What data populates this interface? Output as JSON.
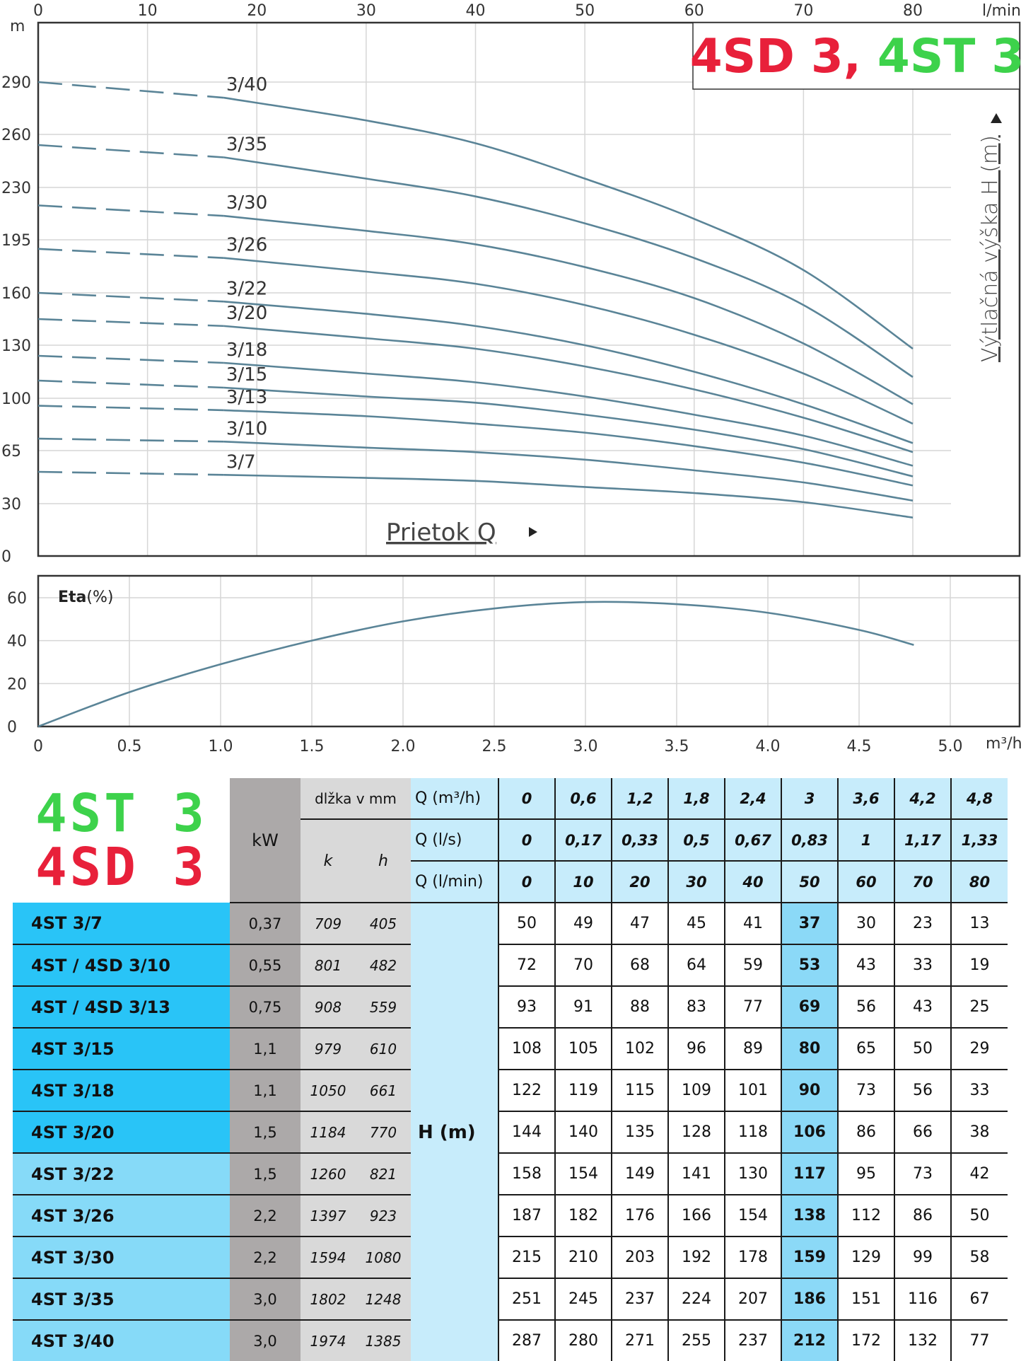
{
  "brand": {
    "title_red": "4SD 3,",
    "title_green": "4ST 3",
    "logo_green": "4ST 3",
    "logo_red": "4SD 3",
    "red_color": "#e8203a",
    "green_color": "#3dd24b"
  },
  "chart_data": [
    {
      "type": "line",
      "title": "",
      "ylabel": "Výtlačná výška H (m)",
      "xlabel": "Prietok Q",
      "y_unit": "m",
      "x_unit": "l/min",
      "xlim": [
        0,
        90
      ],
      "ylim": [
        0,
        320
      ],
      "x_ticks": [
        0,
        10,
        20,
        30,
        40,
        50,
        60,
        70,
        80
      ],
      "y_ticks": [
        0,
        30,
        65,
        100,
        130,
        160,
        195,
        230,
        260,
        290
      ],
      "grid": true,
      "line_color": "#5a8497",
      "extrapolated_range_l_min": [
        0,
        17
      ],
      "series": [
        {
          "name": "3/40",
          "x": [
            0,
            17,
            30,
            40,
            50,
            60,
            70,
            80
          ],
          "y": [
            290,
            281,
            268,
            255,
            235,
            209,
            175,
            128
          ]
        },
        {
          "name": "3/35",
          "x": [
            0,
            17,
            30,
            40,
            50,
            60,
            70,
            80
          ],
          "y": [
            254,
            247,
            235,
            224,
            206,
            183,
            153,
            112
          ]
        },
        {
          "name": "3/30",
          "x": [
            0,
            17,
            30,
            40,
            50,
            60,
            70,
            80
          ],
          "y": [
            218,
            211,
            201,
            192,
            177,
            157,
            131,
            96
          ]
        },
        {
          "name": "3/26",
          "x": [
            0,
            17,
            30,
            40,
            50,
            60,
            70,
            80
          ],
          "y": [
            189,
            183,
            174,
            166,
            153,
            136,
            114,
            83
          ]
        },
        {
          "name": "3/22",
          "x": [
            0,
            17,
            30,
            40,
            50,
            60,
            70,
            80
          ],
          "y": [
            160,
            155,
            148,
            141,
            130,
            115,
            96,
            70
          ]
        },
        {
          "name": "3/20",
          "x": [
            0,
            17,
            30,
            40,
            50,
            60,
            70,
            80
          ],
          "y": [
            145,
            141,
            134,
            128,
            118,
            105,
            87,
            64
          ]
        },
        {
          "name": "3/18",
          "x": [
            0,
            17,
            30,
            40,
            50,
            60,
            70,
            80
          ],
          "y": [
            124,
            120,
            114,
            109,
            101,
            89,
            75,
            55
          ]
        },
        {
          "name": "3/15",
          "x": [
            0,
            17,
            30,
            40,
            50,
            60,
            70,
            80
          ],
          "y": [
            110,
            106,
            101,
            97,
            89,
            79,
            66,
            48
          ]
        },
        {
          "name": "3/13",
          "x": [
            0,
            17,
            30,
            40,
            50,
            60,
            70,
            80
          ],
          "y": [
            95,
            92,
            88,
            83,
            77,
            68,
            57,
            42
          ]
        },
        {
          "name": "3/10",
          "x": [
            0,
            17,
            30,
            40,
            50,
            60,
            70,
            80
          ],
          "y": [
            73,
            71,
            67,
            64,
            59,
            52,
            44,
            32
          ]
        },
        {
          "name": "3/7",
          "x": [
            0,
            17,
            30,
            40,
            50,
            60,
            70,
            80
          ],
          "y": [
            51,
            49,
            47,
            45,
            41,
            37,
            31,
            22
          ]
        }
      ]
    },
    {
      "type": "line",
      "title": "",
      "ylabel_bold": "Eta",
      "ylabel_unit": "(%)",
      "x_unit": "m³/h",
      "xlim": [
        0,
        5.2
      ],
      "ylim": [
        0,
        66
      ],
      "x_ticks": [
        "0",
        "0.5",
        "1.0",
        "1.5",
        "2.0",
        "2.5",
        "3.0",
        "3.5",
        "4.0",
        "4.5",
        "5.0"
      ],
      "y_ticks": [
        0,
        20,
        40,
        60
      ],
      "grid": true,
      "line_color": "#5a8497",
      "series": [
        {
          "name": "Eta",
          "x": [
            0,
            0.5,
            1.0,
            1.5,
            2.0,
            2.5,
            3.0,
            3.5,
            4.0,
            4.5,
            4.8
          ],
          "y": [
            0,
            16,
            29,
            40,
            49,
            55,
            58,
            57,
            53,
            45,
            38
          ]
        }
      ]
    }
  ],
  "table": {
    "kw_header": "kW",
    "length_header": "dlžka v mm",
    "k_header": "k",
    "h_header": "h",
    "q_rows": [
      {
        "label": "Q (m³/h)",
        "values": [
          "0",
          "0,6",
          "1,2",
          "1,8",
          "2,4",
          "3",
          "3,6",
          "4,2",
          "4,8"
        ]
      },
      {
        "label": "Q (l/s)",
        "values": [
          "0",
          "0,17",
          "0,33",
          "0,5",
          "0,67",
          "0,83",
          "1",
          "1,17",
          "1,33"
        ]
      },
      {
        "label": "Q (l/min)",
        "values": [
          "0",
          "10",
          "20",
          "30",
          "40",
          "50",
          "60",
          "70",
          "80"
        ]
      }
    ],
    "h_label": "H  (m)",
    "highlight_index": 5,
    "rows": [
      {
        "model": "4ST 3/7",
        "kw": "0,37",
        "k": "709",
        "h": "405",
        "values": [
          "50",
          "49",
          "47",
          "45",
          "41",
          "37",
          "30",
          "23",
          "13"
        ]
      },
      {
        "model": "4ST / 4SD 3/10",
        "kw": "0,55",
        "k": "801",
        "h": "482",
        "values": [
          "72",
          "70",
          "68",
          "64",
          "59",
          "53",
          "43",
          "33",
          "19"
        ]
      },
      {
        "model": "4ST / 4SD 3/13",
        "kw": "0,75",
        "k": "908",
        "h": "559",
        "values": [
          "93",
          "91",
          "88",
          "83",
          "77",
          "69",
          "56",
          "43",
          "25"
        ]
      },
      {
        "model": "4ST 3/15",
        "kw": "1,1",
        "k": "979",
        "h": "610",
        "values": [
          "108",
          "105",
          "102",
          "96",
          "89",
          "80",
          "65",
          "50",
          "29"
        ]
      },
      {
        "model": "4ST 3/18",
        "kw": "1,1",
        "k": "1050",
        "h": "661",
        "values": [
          "122",
          "119",
          "115",
          "109",
          "101",
          "90",
          "73",
          "56",
          "33"
        ]
      },
      {
        "model": "4ST 3/20",
        "kw": "1,5",
        "k": "1184",
        "h": "770",
        "values": [
          "144",
          "140",
          "135",
          "128",
          "118",
          "106",
          "86",
          "66",
          "38"
        ]
      },
      {
        "model": "4ST 3/22",
        "kw": "1,5",
        "k": "1260",
        "h": "821",
        "values": [
          "158",
          "154",
          "149",
          "141",
          "130",
          "117",
          "95",
          "73",
          "42"
        ]
      },
      {
        "model": "4ST 3/26",
        "kw": "2,2",
        "k": "1397",
        "h": "923",
        "values": [
          "187",
          "182",
          "176",
          "166",
          "154",
          "138",
          "112",
          "86",
          "50"
        ]
      },
      {
        "model": "4ST 3/30",
        "kw": "2,2",
        "k": "1594",
        "h": "1080",
        "values": [
          "215",
          "210",
          "203",
          "192",
          "178",
          "159",
          "129",
          "99",
          "58"
        ]
      },
      {
        "model": "4ST 3/35",
        "kw": "3,0",
        "k": "1802",
        "h": "1248",
        "values": [
          "251",
          "245",
          "237",
          "224",
          "207",
          "186",
          "151",
          "116",
          "67"
        ]
      },
      {
        "model": "4ST 3/40",
        "kw": "3,0",
        "k": "1974",
        "h": "1385",
        "values": [
          "287",
          "280",
          "271",
          "255",
          "237",
          "212",
          "172",
          "132",
          "77"
        ]
      }
    ]
  }
}
